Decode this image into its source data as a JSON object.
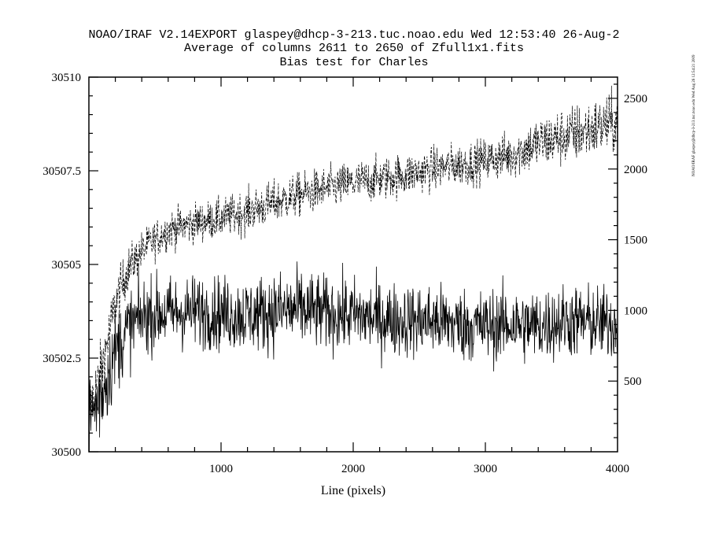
{
  "title_lines": [
    "NOAO/IRAF V2.14EXPORT glaspey@dhcp-3-213.tuc.noao.edu Wed 12:53:40 26-Aug-2",
    "Average of columns 2611 to 2650 of Zfull1x1.fits",
    "Bias test for Charles"
  ],
  "side_stamp": "NOAO/IRAF glaspey@dhcp-3-213.tuc.noao.edu Wed Aug 26 12:54:21 2009",
  "chart_data": {
    "type": "line",
    "title": "Average of columns 2611 to 2650 of Zfull1x1.fits",
    "subtitle": "Bias test for Charles",
    "xlabel": "Line (pixels)",
    "ylabel": "",
    "xlim": [
      0,
      4000
    ],
    "ylim": [
      30500,
      30510
    ],
    "y2lim": [
      0,
      2650
    ],
    "x_ticks": [
      1000,
      2000,
      3000,
      4000
    ],
    "x_tick_labels": [
      "1000",
      "2000",
      "3000",
      "4000"
    ],
    "y_ticks": [
      30500,
      30502.5,
      30505,
      30507.5,
      30510
    ],
    "y_tick_labels": [
      "30500",
      "30502.5",
      "30505",
      "30507.5",
      "30510"
    ],
    "y2_ticks": [
      500,
      1000,
      1500,
      2000,
      2500
    ],
    "y2_tick_labels": [
      "500",
      "1000",
      "1500",
      "2000",
      "2500"
    ],
    "grid": false,
    "series": [
      {
        "axis": "left",
        "style": "solid",
        "x": [
          0,
          100,
          200,
          300,
          400,
          500,
          600,
          800,
          1000,
          1200,
          1400,
          1600,
          1800,
          2000,
          2200,
          2400,
          2600,
          2800,
          3000,
          3200,
          3400,
          3600,
          3800,
          4000
        ],
        "mean": [
          30500.8,
          30501.6,
          30502.7,
          30503.3,
          30503.6,
          30503.7,
          30503.7,
          30503.75,
          30503.7,
          30503.65,
          30503.75,
          30503.8,
          30503.7,
          30503.65,
          30503.55,
          30503.5,
          30503.5,
          30503.4,
          30503.35,
          30503.4,
          30503.35,
          30503.5,
          30503.45,
          30503.4
        ],
        "spread": [
          0.9,
          0.9,
          0.8,
          0.75,
          0.7,
          0.7,
          0.7,
          0.7,
          0.7,
          0.7,
          0.75,
          0.75,
          0.7,
          0.7,
          0.7,
          0.7,
          0.7,
          0.7,
          0.7,
          0.7,
          0.7,
          0.7,
          0.7,
          0.7
        ]
      },
      {
        "axis": "right",
        "style": "dashed",
        "x": [
          0,
          100,
          200,
          300,
          400,
          500,
          600,
          800,
          1000,
          1200,
          1400,
          1600,
          1800,
          2000,
          2200,
          2400,
          2600,
          2800,
          3000,
          3200,
          3400,
          3600,
          3800,
          4000
        ],
        "mean": [
          300,
          600,
          1050,
          1300,
          1420,
          1500,
          1570,
          1620,
          1650,
          1700,
          1760,
          1820,
          1860,
          1900,
          1930,
          1960,
          2000,
          2030,
          2060,
          2100,
          2180,
          2230,
          2280,
          2330
        ],
        "spread": [
          150,
          150,
          130,
          110,
          100,
          100,
          100,
          100,
          100,
          110,
          110,
          110,
          110,
          110,
          110,
          110,
          110,
          110,
          110,
          120,
          140,
          150,
          150,
          150
        ]
      }
    ]
  }
}
